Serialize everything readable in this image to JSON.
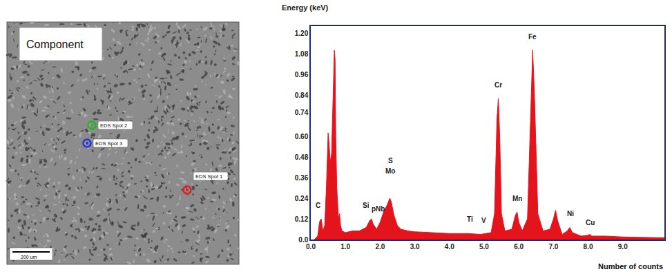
{
  "micrograph": {
    "label": "Component",
    "spots": [
      {
        "label": "EDS Spot 2",
        "color": "#22b422"
      },
      {
        "label": "EDS Spot 3",
        "color": "#2233dd"
      },
      {
        "label": "EDS Spot 1",
        "color": "#e02020"
      }
    ],
    "scale_bar": "200 um"
  },
  "chart_data": {
    "type": "area",
    "y_label": "Energy (keV)",
    "x_label": "Number of counts",
    "color": "#e3141b",
    "grid": false,
    "x": [
      0.1,
      0.2,
      0.25,
      0.3,
      0.35,
      0.4,
      0.45,
      0.5,
      0.53,
      0.56,
      0.6,
      0.65,
      0.68,
      0.7,
      0.72,
      0.75,
      0.8,
      0.83,
      0.86,
      0.9,
      1.0,
      1.2,
      1.4,
      1.6,
      1.7,
      1.75,
      1.8,
      1.9,
      2.0,
      2.1,
      2.2,
      2.28,
      2.32,
      2.4,
      2.5,
      2.6,
      2.8,
      3.0,
      3.5,
      4.0,
      4.5,
      4.9,
      5.2,
      5.3,
      5.37,
      5.41,
      5.45,
      5.5,
      5.6,
      5.8,
      5.9,
      5.95,
      6.0,
      6.1,
      6.25,
      6.35,
      6.4,
      6.45,
      6.55,
      6.7,
      6.9,
      7.0,
      7.06,
      7.12,
      7.25,
      7.4,
      7.47,
      7.55,
      7.8,
      8.0,
      8.05,
      8.1,
      8.5,
      9.0,
      9.5,
      10.0,
      10.2
    ],
    "values": [
      0.0,
      0.02,
      0.1,
      0.12,
      0.05,
      0.08,
      0.3,
      0.62,
      0.55,
      0.45,
      0.5,
      0.9,
      1.1,
      1.05,
      0.6,
      0.3,
      0.12,
      0.15,
      0.08,
      0.05,
      0.04,
      0.05,
      0.05,
      0.07,
      0.11,
      0.12,
      0.09,
      0.06,
      0.1,
      0.16,
      0.2,
      0.24,
      0.22,
      0.14,
      0.08,
      0.06,
      0.05,
      0.045,
      0.04,
      0.035,
      0.035,
      0.03,
      0.04,
      0.15,
      0.7,
      0.82,
      0.6,
      0.15,
      0.05,
      0.06,
      0.14,
      0.16,
      0.1,
      0.05,
      0.12,
      0.8,
      1.1,
      0.85,
      0.15,
      0.05,
      0.06,
      0.12,
      0.17,
      0.11,
      0.03,
      0.05,
      0.07,
      0.04,
      0.02,
      0.025,
      0.03,
      0.02,
      0.02,
      0.015,
      0.012,
      0.01,
      0.01
    ],
    "xlim": [
      0,
      10.2
    ],
    "xticks": [
      {
        "value": 0,
        "label": "0.0"
      },
      {
        "value": 1,
        "label": "1.0"
      },
      {
        "value": 2,
        "label": "2.0"
      },
      {
        "value": 3,
        "label": "3.0"
      },
      {
        "value": 4,
        "label": "4.0"
      },
      {
        "value": 5,
        "label": "5.0"
      },
      {
        "value": 6,
        "label": "6.0"
      },
      {
        "value": 7,
        "label": "7.0"
      },
      {
        "value": 8,
        "label": "8.0"
      },
      {
        "value": 9,
        "label": "9.0"
      }
    ],
    "ylim": [
      0,
      1.24
    ],
    "yticks": [
      {
        "value": 0,
        "label": "0.0"
      },
      0.12,
      0.24,
      0.36,
      0.48,
      {
        "value": 0.6,
        "label": "0.60"
      },
      0.74,
      0.84,
      0.96,
      1.08,
      {
        "value": 1.2,
        "label": "1.20"
      }
    ],
    "annotations": [
      {
        "text": "C",
        "x": 0.2,
        "y": 0.17
      },
      {
        "text": "Si",
        "x": 1.6,
        "y": 0.17
      },
      {
        "text": "S",
        "x": 2.3,
        "y": 0.43
      },
      {
        "text": "Mo",
        "x": 2.3,
        "y": 0.37
      },
      {
        "text": "pNb",
        "x": 1.95,
        "y": 0.15
      },
      {
        "text": "Ti",
        "x": 4.6,
        "y": 0.09
      },
      {
        "text": "V",
        "x": 5.0,
        "y": 0.08
      },
      {
        "text": "Cr",
        "x": 5.4,
        "y": 0.87
      },
      {
        "text": "Mn",
        "x": 5.95,
        "y": 0.21
      },
      {
        "text": "Fe",
        "x": 6.4,
        "y": 1.15
      },
      {
        "text": "Ni",
        "x": 7.5,
        "y": 0.12
      },
      {
        "text": "Cu",
        "x": 8.05,
        "y": 0.07
      }
    ]
  }
}
